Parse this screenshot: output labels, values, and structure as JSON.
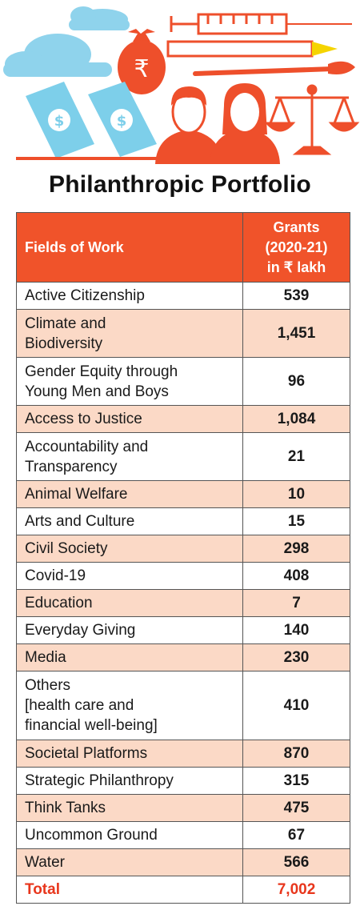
{
  "page": {
    "title": "Philanthropic Portfolio"
  },
  "colors": {
    "accent": "#f0532a",
    "stripe": "#fbd9c6",
    "total_text": "#e8361c",
    "cloud": "#8fd3ec",
    "banknote": "#7dcfea"
  },
  "illustration": {
    "icons": [
      "cloud-icon",
      "money-bag-icon",
      "syringe-icon",
      "pencil-icon",
      "paintbrush-icon",
      "banknote-icon",
      "man-icon",
      "woman-icon",
      "scales-icon"
    ],
    "rupee_symbol": "₹",
    "dollar_symbol": "$"
  },
  "chart_data": {
    "type": "table",
    "title": "Philanthropic Portfolio",
    "columns": [
      "Fields of Work",
      "Grants (2020-21) in ₹ lakh"
    ],
    "header": {
      "field": "Fields of Work",
      "grants_lines": [
        "Grants",
        "(2020-21)",
        "in ₹ lakh"
      ]
    },
    "rows": [
      {
        "lines": [
          "Active Citizenship"
        ],
        "value": "539"
      },
      {
        "lines": [
          "Climate and",
          "Biodiversity"
        ],
        "value": "1,451"
      },
      {
        "lines": [
          "Gender Equity through",
          "Young Men and Boys"
        ],
        "value": "96"
      },
      {
        "lines": [
          "Access to Justice"
        ],
        "value": "1,084"
      },
      {
        "lines": [
          "Accountability and",
          "Transparency"
        ],
        "value": "21"
      },
      {
        "lines": [
          "Animal Welfare"
        ],
        "value": "10"
      },
      {
        "lines": [
          "Arts and Culture"
        ],
        "value": "15"
      },
      {
        "lines": [
          "Civil Society"
        ],
        "value": "298"
      },
      {
        "lines": [
          "Covid-19"
        ],
        "value": "408"
      },
      {
        "lines": [
          "Education"
        ],
        "value": "7"
      },
      {
        "lines": [
          "Everyday Giving"
        ],
        "value": "140"
      },
      {
        "lines": [
          "Media"
        ],
        "value": "230"
      },
      {
        "lines": [
          "Others",
          "[health care and",
          "financial well-being]"
        ],
        "value": "410"
      },
      {
        "lines": [
          "Societal Platforms"
        ],
        "value": "870"
      },
      {
        "lines": [
          "Strategic Philanthropy"
        ],
        "value": "315"
      },
      {
        "lines": [
          "Think Tanks"
        ],
        "value": "475"
      },
      {
        "lines": [
          "Uncommon Ground"
        ],
        "value": "67"
      },
      {
        "lines": [
          "Water"
        ],
        "value": "566"
      }
    ],
    "total": {
      "label": "Total",
      "value": "7,002"
    }
  }
}
